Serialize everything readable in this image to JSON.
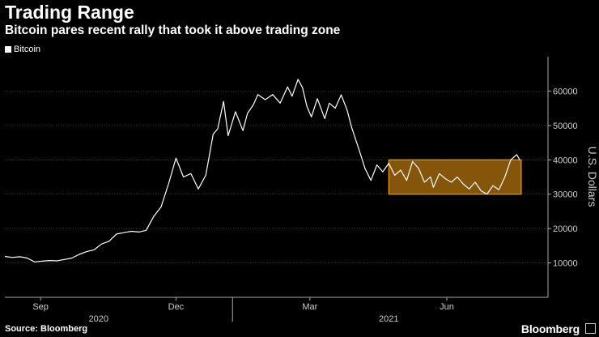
{
  "chart_data": {
    "type": "line",
    "title": "Trading Range",
    "subtitle": "Bitcoin pares recent rally that took it above trading zone",
    "ylabel": "U.S. Dollars",
    "ylim": [
      0,
      70000
    ],
    "yticks": [
      10000,
      20000,
      30000,
      40000,
      50000,
      60000
    ],
    "ytick_labels": [
      "10000",
      "20000",
      "30000",
      "40000",
      "50000",
      "60000"
    ],
    "xlim": [
      0,
      365
    ],
    "month_ticks": [
      {
        "label": "Sep",
        "x": 24
      },
      {
        "label": "Dec",
        "x": 115
      },
      {
        "label": "Mar",
        "x": 205
      },
      {
        "label": "Jun",
        "x": 297
      }
    ],
    "year_labels": [
      {
        "label": "2020",
        "x": 63
      },
      {
        "label": "2021",
        "x": 258
      }
    ],
    "year_divider_x": 153,
    "series": [
      {
        "name": "Bitcoin",
        "x": [
          0,
          5,
          10,
          15,
          20,
          25,
          30,
          35,
          40,
          45,
          50,
          55,
          60,
          65,
          70,
          75,
          80,
          85,
          90,
          95,
          100,
          105,
          110,
          115,
          120,
          125,
          130,
          135,
          140,
          143,
          147,
          150,
          155,
          160,
          163,
          167,
          170,
          175,
          180,
          185,
          190,
          193,
          197,
          200,
          203,
          206,
          210,
          215,
          218,
          222,
          226,
          230,
          233,
          238,
          242,
          246,
          250,
          254,
          258,
          262,
          266,
          270,
          274,
          278,
          282,
          286,
          288,
          292,
          296,
          300,
          304,
          308,
          312,
          316,
          320,
          324,
          328,
          332,
          336,
          340,
          344,
          346
        ],
        "values": [
          11900,
          11600,
          11800,
          11400,
          10300,
          10500,
          10700,
          10600,
          11000,
          11400,
          12500,
          13300,
          13800,
          15500,
          16300,
          18400,
          18800,
          19200,
          19000,
          19500,
          23500,
          26300,
          33000,
          40500,
          35000,
          36000,
          31500,
          35500,
          47500,
          49000,
          57000,
          47000,
          54000,
          48500,
          53500,
          56000,
          59000,
          57500,
          59000,
          56500,
          61200,
          58500,
          63400,
          61000,
          55500,
          52500,
          57800,
          52000,
          56500,
          55000,
          58900,
          54500,
          49500,
          43000,
          37500,
          34000,
          38500,
          36500,
          39000,
          35500,
          37000,
          34000,
          39500,
          37500,
          33500,
          35000,
          32000,
          36000,
          34500,
          33500,
          35000,
          33000,
          31500,
          33500,
          31000,
          30000,
          32500,
          31300,
          35000,
          40000,
          41500,
          40000
        ]
      }
    ],
    "annotations": [
      {
        "type": "range-box",
        "x0": 258,
        "x1": 347,
        "y0": 30000,
        "y1": 40000,
        "color": "#f29a12"
      }
    ]
  },
  "source": "Source: Bloomberg",
  "brand": "Bloomberg",
  "legend_label": "Bitcoin"
}
